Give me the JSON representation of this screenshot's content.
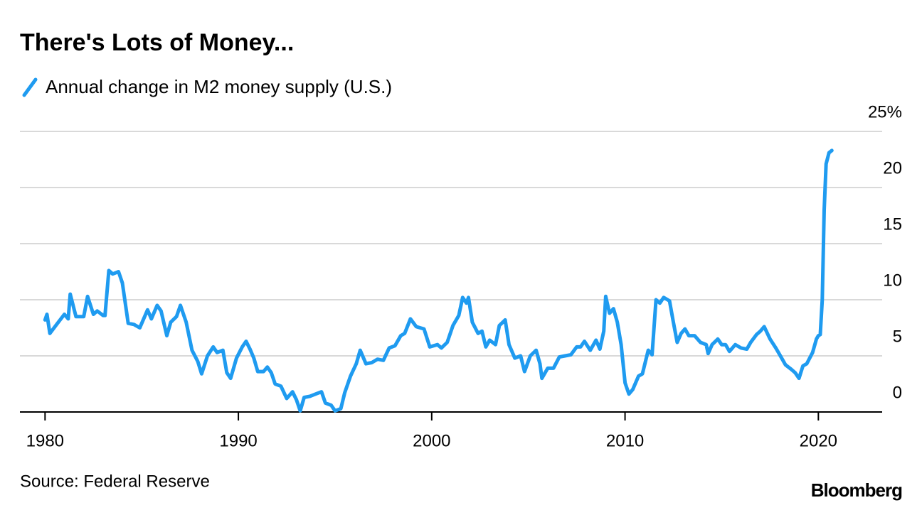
{
  "chart_data": {
    "type": "line",
    "title": "There's Lots of Money...",
    "source": "Source: Federal Reserve",
    "brand": "Bloomberg",
    "x": [
      1980.0,
      1980.1,
      1980.25,
      1980.6,
      1981.0,
      1981.2,
      1981.3,
      1981.6,
      1982.0,
      1982.2,
      1982.5,
      1982.7,
      1983.0,
      1983.1,
      1983.3,
      1983.5,
      1983.8,
      1984.0,
      1984.3,
      1984.6,
      1984.9,
      1985.3,
      1985.5,
      1985.8,
      1986.0,
      1986.3,
      1986.5,
      1986.8,
      1987.0,
      1987.3,
      1987.6,
      1987.9,
      1988.1,
      1988.4,
      1988.7,
      1988.9,
      1989.2,
      1989.4,
      1989.6,
      1989.9,
      1990.2,
      1990.4,
      1990.6,
      1990.8,
      1991.0,
      1991.3,
      1991.5,
      1991.7,
      1991.9,
      1992.2,
      1992.5,
      1992.8,
      1993.0,
      1993.2,
      1993.4,
      1993.7,
      1994.0,
      1994.3,
      1994.5,
      1994.8,
      1995.0,
      1995.3,
      1995.5,
      1995.8,
      1996.1,
      1996.3,
      1996.6,
      1996.9,
      1997.2,
      1997.5,
      1997.8,
      1998.1,
      1998.4,
      1998.6,
      1998.9,
      1999.2,
      1999.6,
      1999.9,
      2000.3,
      2000.5,
      2000.8,
      2001.1,
      2001.4,
      2001.6,
      2001.8,
      2001.9,
      2002.1,
      2002.4,
      2002.6,
      2002.8,
      2003.0,
      2003.3,
      2003.5,
      2003.8,
      2004.0,
      2004.3,
      2004.6,
      2004.8,
      2005.1,
      2005.4,
      2005.6,
      2005.7,
      2006.0,
      2006.3,
      2006.6,
      2006.9,
      2007.2,
      2007.5,
      2007.7,
      2007.9,
      2008.2,
      2008.5,
      2008.7,
      2008.9,
      2009.0,
      2009.2,
      2009.4,
      2009.6,
      2009.8,
      2010.0,
      2010.2,
      2010.4,
      2010.7,
      2010.9,
      2011.2,
      2011.4,
      2011.6,
      2011.8,
      2012.0,
      2012.3,
      2012.5,
      2012.7,
      2012.9,
      2013.1,
      2013.3,
      2013.6,
      2013.9,
      2014.2,
      2014.3,
      2014.5,
      2014.8,
      2015.0,
      2015.2,
      2015.4,
      2015.7,
      2016.0,
      2016.3,
      2016.5,
      2016.8,
      2017.0,
      2017.2,
      2017.5,
      2017.8,
      2018.0,
      2018.3,
      2018.6,
      2018.8,
      2019.0,
      2019.2,
      2019.4,
      2019.7,
      2019.9,
      2020.0,
      2020.1,
      2020.2,
      2020.3,
      2020.4,
      2020.55,
      2020.7
    ],
    "series": [
      {
        "name": "Annual change in M2 money supply (U.S.)",
        "color": "#1f9bf0",
        "values": [
          8.2,
          8.7,
          7.0,
          7.8,
          8.7,
          8.3,
          10.5,
          8.5,
          8.5,
          10.3,
          8.7,
          9.0,
          8.6,
          8.6,
          12.6,
          12.3,
          12.5,
          11.5,
          7.9,
          7.8,
          7.5,
          9.1,
          8.3,
          9.5,
          9.0,
          6.8,
          8.0,
          8.5,
          9.5,
          8.0,
          5.5,
          4.5,
          3.4,
          5.0,
          5.8,
          5.3,
          5.5,
          3.5,
          3.0,
          4.8,
          5.8,
          6.3,
          5.6,
          4.8,
          3.6,
          3.6,
          4.0,
          3.5,
          2.5,
          2.3,
          1.2,
          1.8,
          1.1,
          0.1,
          1.3,
          1.4,
          1.6,
          1.8,
          0.8,
          0.6,
          0.1,
          0.3,
          1.7,
          3.2,
          4.3,
          5.5,
          4.3,
          4.4,
          4.7,
          4.6,
          5.7,
          5.9,
          6.8,
          7.0,
          8.3,
          7.6,
          7.4,
          5.8,
          6.0,
          5.7,
          6.2,
          7.7,
          8.6,
          10.2,
          9.7,
          10.2,
          8.0,
          7.0,
          7.2,
          5.8,
          6.4,
          6.0,
          7.7,
          8.2,
          6.0,
          4.8,
          5.0,
          3.6,
          5.0,
          5.5,
          4.3,
          3.0,
          3.9,
          3.9,
          4.9,
          5.0,
          5.1,
          5.8,
          5.8,
          6.3,
          5.5,
          6.4,
          5.6,
          7.2,
          10.3,
          8.8,
          9.2,
          8.0,
          6.0,
          2.6,
          1.6,
          2.0,
          3.2,
          3.4,
          5.5,
          5.1,
          10.0,
          9.7,
          10.2,
          9.9,
          8.0,
          6.2,
          7.0,
          7.4,
          6.8,
          6.8,
          6.2,
          6.0,
          5.2,
          6.0,
          6.5,
          6.0,
          6.0,
          5.4,
          6.0,
          5.7,
          5.6,
          6.2,
          6.9,
          7.2,
          7.6,
          6.5,
          5.7,
          5.1,
          4.2,
          3.8,
          3.5,
          3.0,
          4.1,
          4.3,
          5.3,
          6.5,
          6.8,
          6.9,
          10.0,
          18.0,
          22.1,
          23.1,
          23.3
        ]
      }
    ],
    "xlim": [
      1978.7,
      2023.3
    ],
    "xticks": [
      1980,
      1990,
      2000,
      2010,
      2020
    ],
    "ylim": [
      0,
      25
    ],
    "yticks": [
      0,
      5,
      10,
      15,
      20,
      {
        "value": 25,
        "label": "25%"
      }
    ],
    "grid": true
  }
}
